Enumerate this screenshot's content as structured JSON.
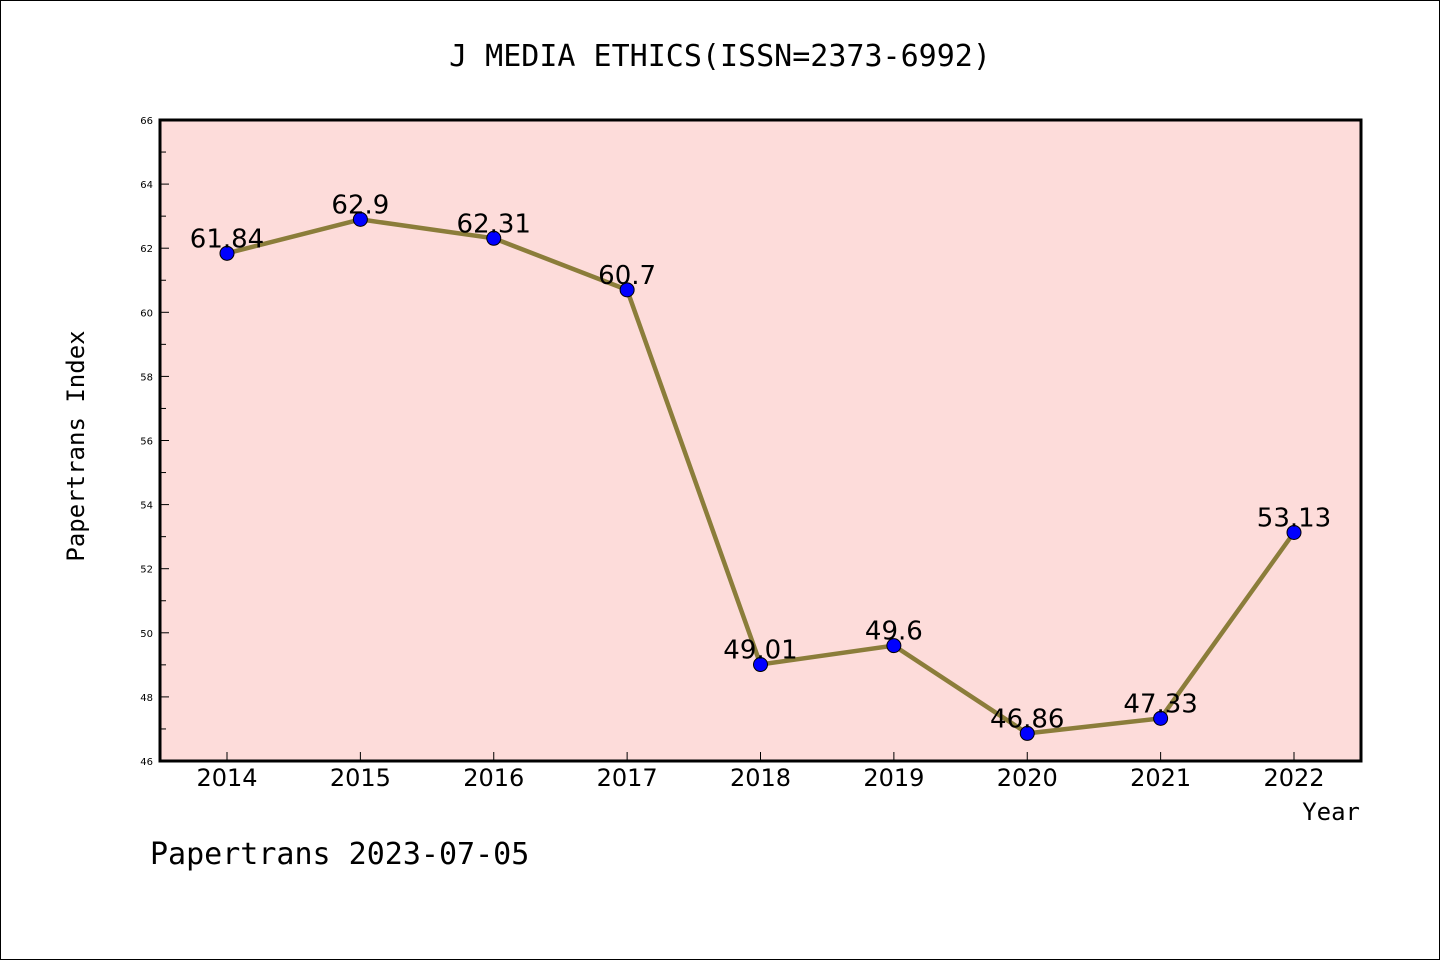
{
  "chart_data": {
    "type": "line",
    "title": "J MEDIA ETHICS(ISSN=2373-6992)",
    "xlabel": "Year",
    "ylabel": "Papertrans Index",
    "categories": [
      "2014",
      "2015",
      "2016",
      "2017",
      "2018",
      "2019",
      "2020",
      "2021",
      "2022"
    ],
    "values": [
      61.84,
      62.9,
      62.31,
      60.7,
      49.01,
      49.6,
      46.86,
      47.33,
      53.13
    ],
    "data_labels": [
      "61.84",
      "62.9",
      "62.31",
      "60.7",
      "49.01",
      "49.6",
      "46.86",
      "47.33",
      "53.13"
    ],
    "ylim": [
      46,
      66
    ],
    "yticks": [
      46,
      48,
      50,
      52,
      54,
      56,
      58,
      60,
      62,
      64,
      66
    ],
    "grid": false,
    "colors": {
      "plot_background": "#fddcda",
      "line": "#8b7d3a",
      "marker": "#0000ff"
    }
  },
  "footer": "Papertrans 2023-07-05"
}
